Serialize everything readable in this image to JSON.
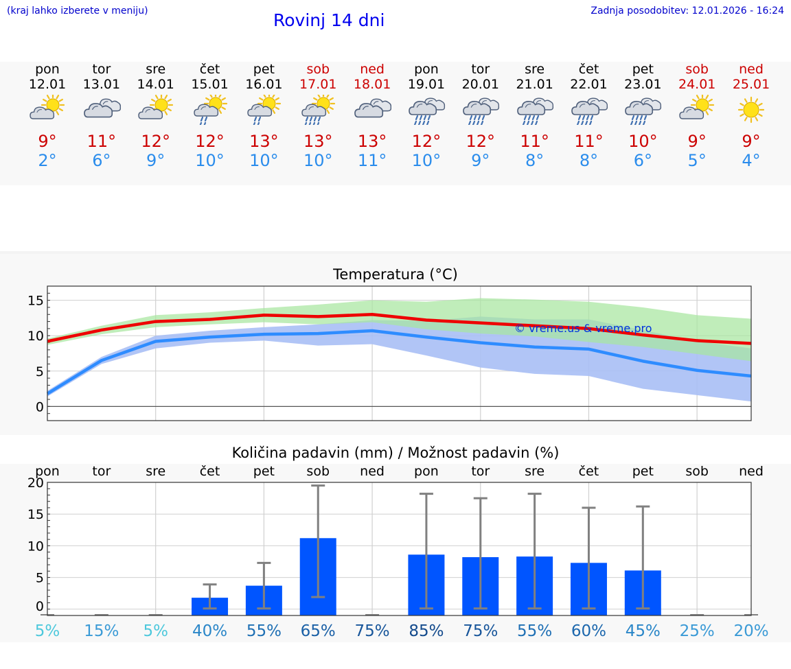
{
  "header": {
    "hint": "(kraj lahko izberete v meniju)",
    "title": "Rovinj 14 dni",
    "updated": "Zadnja posodobitev: 12.01.2026 - 16:24"
  },
  "days": [
    {
      "name": "pon",
      "date": "12.01",
      "weekend": false,
      "icon": "partly-cloudy-icon",
      "tmax": "9°",
      "tmin": "2°"
    },
    {
      "name": "tor",
      "date": "13.01",
      "weekend": false,
      "icon": "cloudy-icon",
      "tmax": "11°",
      "tmin": "6°"
    },
    {
      "name": "sre",
      "date": "14.01",
      "weekend": false,
      "icon": "partly-cloudy-icon",
      "tmax": "12°",
      "tmin": "9°"
    },
    {
      "name": "čet",
      "date": "15.01",
      "weekend": false,
      "icon": "sun-cloud-light-rain-icon",
      "tmax": "12°",
      "tmin": "10°"
    },
    {
      "name": "pet",
      "date": "16.01",
      "weekend": false,
      "icon": "sun-cloud-light-rain-icon",
      "tmax": "13°",
      "tmin": "10°"
    },
    {
      "name": "sob",
      "date": "17.01",
      "weekend": true,
      "icon": "sun-cloud-rain-icon",
      "tmax": "13°",
      "tmin": "10°"
    },
    {
      "name": "ned",
      "date": "18.01",
      "weekend": true,
      "icon": "cloudy-icon",
      "tmax": "13°",
      "tmin": "11°"
    },
    {
      "name": "pon",
      "date": "19.01",
      "weekend": false,
      "icon": "cloud-rain-icon",
      "tmax": "12°",
      "tmin": "10°"
    },
    {
      "name": "tor",
      "date": "20.01",
      "weekend": false,
      "icon": "cloud-rain-icon",
      "tmax": "12°",
      "tmin": "9°"
    },
    {
      "name": "sre",
      "date": "21.01",
      "weekend": false,
      "icon": "cloud-rain-icon",
      "tmax": "11°",
      "tmin": "8°"
    },
    {
      "name": "čet",
      "date": "22.01",
      "weekend": false,
      "icon": "cloud-rain-icon",
      "tmax": "11°",
      "tmin": "8°"
    },
    {
      "name": "pet",
      "date": "23.01",
      "weekend": false,
      "icon": "cloud-rain-icon",
      "tmax": "10°",
      "tmin": "6°"
    },
    {
      "name": "sob",
      "date": "24.01",
      "weekend": true,
      "icon": "partly-cloudy-icon",
      "tmax": "9°",
      "tmin": "5°"
    },
    {
      "name": "ned",
      "date": "25.01",
      "weekend": true,
      "icon": "sun-icon",
      "tmax": "9°",
      "tmin": "4°"
    }
  ],
  "colors": {
    "max_line": "#ee0000",
    "min_line": "#2e8cff",
    "max_band": "#a8e6a0",
    "min_band": "#a8bff5",
    "overlap": "#7cc4a6",
    "bar": "#0055ff",
    "error": "#808080",
    "weekend": "#cc0000"
  },
  "chart_data": [
    {
      "type": "line",
      "title": "Temperatura (°C)",
      "watermark": "© vreme.us & vreme.pro",
      "x_index": [
        0,
        1,
        2,
        3,
        4,
        5,
        6,
        7,
        8,
        9,
        10,
        11,
        12,
        13
      ],
      "yticks": [
        0,
        5,
        10,
        15
      ],
      "ylim": [
        -2,
        17
      ],
      "series": [
        {
          "name": "max",
          "values": [
            9.2,
            10.8,
            12.0,
            12.3,
            12.9,
            12.7,
            13.0,
            12.2,
            11.8,
            11.4,
            11.0,
            10.1,
            9.3,
            8.9
          ],
          "band_low": [
            8.7,
            10.2,
            11.2,
            11.6,
            11.9,
            11.6,
            11.9,
            10.9,
            10.3,
            9.9,
            9.1,
            8.4,
            7.4,
            6.4
          ],
          "band_high": [
            9.6,
            11.4,
            12.9,
            13.3,
            13.9,
            14.4,
            15.0,
            14.8,
            15.3,
            15.1,
            14.8,
            14.0,
            12.9,
            12.4
          ]
        },
        {
          "name": "min",
          "values": [
            1.8,
            6.5,
            9.2,
            9.8,
            10.2,
            10.3,
            10.7,
            9.8,
            9.0,
            8.4,
            8.1,
            6.4,
            5.1,
            4.3
          ],
          "band_low": [
            1.4,
            6.0,
            8.2,
            9.0,
            9.3,
            8.6,
            8.8,
            7.2,
            5.5,
            4.6,
            4.3,
            2.5,
            1.6,
            0.7
          ],
          "band_high": [
            2.2,
            7.0,
            10.0,
            10.7,
            11.2,
            11.6,
            12.2,
            12.1,
            12.7,
            12.3,
            12.3,
            10.8,
            9.2,
            8.2
          ]
        }
      ]
    },
    {
      "type": "bar",
      "title": "Količina padavin (mm) / Možnost padavin (%)",
      "categories": [
        "pon",
        "tor",
        "sre",
        "čet",
        "pet",
        "sob",
        "ned",
        "pon",
        "tor",
        "sre",
        "čet",
        "pet",
        "sob",
        "ned"
      ],
      "values": [
        0,
        0,
        0,
        1.8,
        3.7,
        11.2,
        0,
        8.6,
        8.2,
        8.3,
        7.3,
        6.1,
        0,
        0
      ],
      "error_low": [
        0,
        0,
        0,
        0,
        0,
        1.8,
        0,
        0,
        0,
        0,
        0,
        0,
        0,
        0
      ],
      "error_high": [
        0,
        0.1,
        0.1,
        3.9,
        7.3,
        19.5,
        0.1,
        18.2,
        17.5,
        18.2,
        16.0,
        16.2,
        0.1,
        0.1
      ],
      "yticks": [
        0,
        5,
        10,
        15,
        20
      ],
      "ylim": [
        -1,
        20
      ],
      "ylabel": "mm",
      "probability": [
        {
          "text": "5%",
          "color": "#4dc8dc"
        },
        {
          "text": "15%",
          "color": "#3a9ad6"
        },
        {
          "text": "5%",
          "color": "#4dc8dc"
        },
        {
          "text": "40%",
          "color": "#2a86c8"
        },
        {
          "text": "55%",
          "color": "#1e6fb4"
        },
        {
          "text": "65%",
          "color": "#1a60a6"
        },
        {
          "text": "75%",
          "color": "#17559a"
        },
        {
          "text": "85%",
          "color": "#134a8c"
        },
        {
          "text": "75%",
          "color": "#17559a"
        },
        {
          "text": "55%",
          "color": "#1e6fb4"
        },
        {
          "text": "60%",
          "color": "#1c67ad"
        },
        {
          "text": "45%",
          "color": "#2a86c8"
        },
        {
          "text": "25%",
          "color": "#3a9ad6"
        },
        {
          "text": "20%",
          "color": "#3a9ad6"
        }
      ]
    }
  ]
}
